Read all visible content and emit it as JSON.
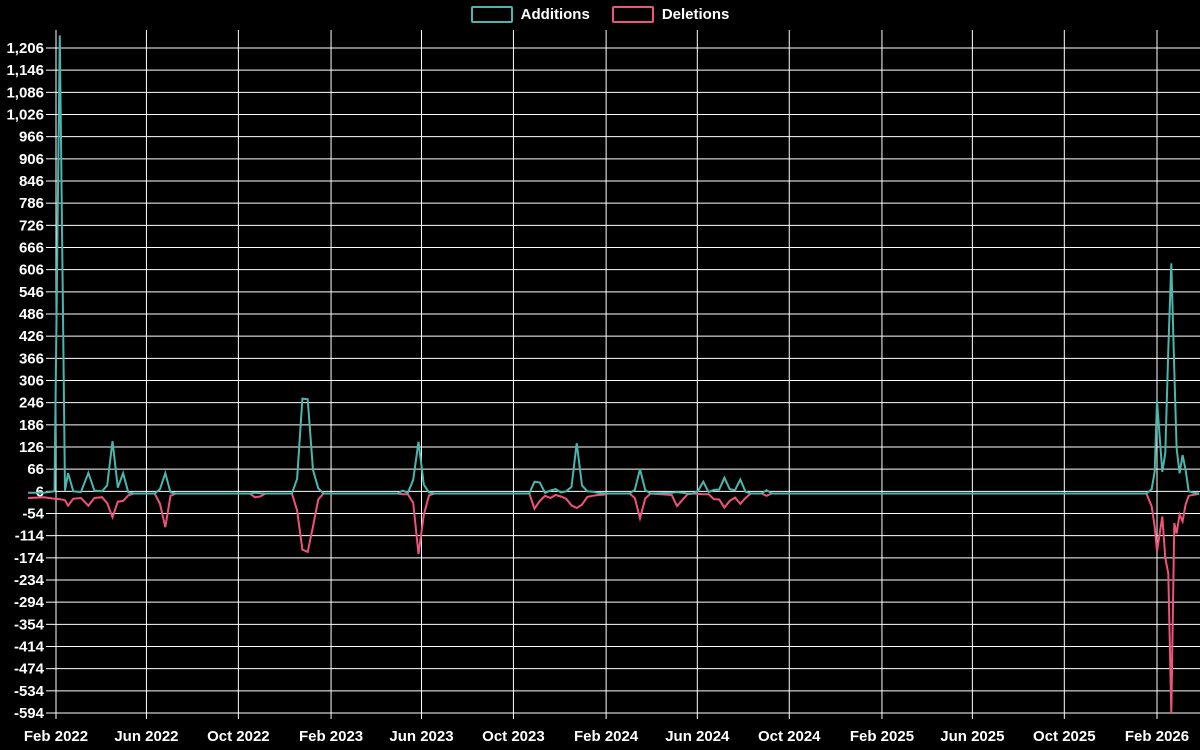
{
  "colors": {
    "background": "#000000",
    "grid": "#ffffff",
    "text": "#ffffff"
  },
  "legend": {
    "additions_label": "Additions",
    "deletions_label": "Deletions"
  },
  "chart_data": {
    "type": "line",
    "title": "",
    "xlabel": "",
    "ylabel": "",
    "legend_position": "top-center",
    "grid": true,
    "series_meta": [
      {
        "name": "Additions",
        "color": "#4ab6ad"
      },
      {
        "name": "Deletions",
        "color": "#f0537a"
      }
    ],
    "y_axis": {
      "min": -594,
      "max": 1240,
      "tick_step": 60,
      "tick_values": [
        1206,
        1146,
        1086,
        1026,
        966,
        906,
        846,
        786,
        726,
        666,
        606,
        546,
        486,
        426,
        366,
        306,
        246,
        186,
        126,
        66,
        6,
        -54,
        -114,
        -174,
        -234,
        -294,
        -354,
        -414,
        -474,
        -534,
        -594
      ],
      "tick_labels": [
        "1,206",
        "1,146",
        "1,086",
        "1,026",
        "966",
        "906",
        "846",
        "786",
        "726",
        "666",
        "606",
        "546",
        "486",
        "426",
        "366",
        "306",
        "246",
        "186",
        "126",
        "66",
        "6",
        "-54",
        "-114",
        "-174",
        "-234",
        "-294",
        "-354",
        "-414",
        "-474",
        "-534",
        "-594"
      ]
    },
    "x_axis": {
      "anchor_date": "2022-02-01",
      "ticks": [
        {
          "label": "Feb 2022",
          "date": "2022-02-01"
        },
        {
          "label": "Jun 2022",
          "date": "2022-06-01"
        },
        {
          "label": "Oct 2022",
          "date": "2022-10-01"
        },
        {
          "label": "Feb 2023",
          "date": "2023-02-01"
        },
        {
          "label": "Jun 2023",
          "date": "2023-06-01"
        },
        {
          "label": "Oct 2023",
          "date": "2023-10-01"
        },
        {
          "label": "Feb 2024",
          "date": "2024-02-01"
        },
        {
          "label": "Jun 2024",
          "date": "2024-06-01"
        },
        {
          "label": "Oct 2024",
          "date": "2024-10-01"
        },
        {
          "label": "Feb 2025",
          "date": "2025-02-01"
        },
        {
          "label": "Jun 2025",
          "date": "2025-06-01"
        },
        {
          "label": "Oct 2025",
          "date": "2025-10-01"
        },
        {
          "label": "Feb 2026",
          "date": "2026-02-01"
        }
      ]
    },
    "rows_format": [
      "week_date",
      "additions",
      "deletions"
    ],
    "rows": [
      [
        "2021-12-26",
        2,
        -12
      ],
      [
        "2022-01-16",
        2,
        -10
      ],
      [
        "2022-01-30",
        6,
        -14
      ],
      [
        "2022-02-06",
        1240,
        -15
      ],
      [
        "2022-02-13",
        8,
        -18
      ],
      [
        "2022-02-17",
        55,
        -33
      ],
      [
        "2022-02-24",
        6,
        -14
      ],
      [
        "2022-03-06",
        4,
        -12
      ],
      [
        "2022-03-16",
        56,
        -33
      ],
      [
        "2022-03-24",
        8,
        -12
      ],
      [
        "2022-04-03",
        6,
        -10
      ],
      [
        "2022-04-10",
        22,
        -26
      ],
      [
        "2022-04-17",
        142,
        -64
      ],
      [
        "2022-04-24",
        16,
        -22
      ],
      [
        "2022-05-01",
        55,
        -20
      ],
      [
        "2022-05-08",
        3,
        -5
      ],
      [
        "2022-05-15",
        0,
        0
      ],
      [
        "2022-06-12",
        0,
        0
      ],
      [
        "2022-06-19",
        12,
        -28
      ],
      [
        "2022-06-26",
        55,
        -91
      ],
      [
        "2022-07-03",
        3,
        -6
      ],
      [
        "2022-07-10",
        0,
        0
      ],
      [
        "2022-10-16",
        0,
        0
      ],
      [
        "2022-10-23",
        2,
        -10
      ],
      [
        "2022-10-30",
        1,
        -8
      ],
      [
        "2022-11-06",
        0,
        0
      ],
      [
        "2022-12-11",
        0,
        0
      ],
      [
        "2022-12-18",
        40,
        -46
      ],
      [
        "2022-12-25",
        257,
        -152
      ],
      [
        "2023-01-01",
        255,
        -158
      ],
      [
        "2023-01-08",
        64,
        -89
      ],
      [
        "2023-01-15",
        14,
        -16
      ],
      [
        "2023-01-22",
        0,
        0
      ],
      [
        "2023-04-30",
        0,
        0
      ],
      [
        "2023-05-07",
        8,
        -2
      ],
      [
        "2023-05-14",
        2,
        -2
      ],
      [
        "2023-05-21",
        37,
        -25
      ],
      [
        "2023-05-28",
        140,
        -164
      ],
      [
        "2023-06-04",
        24,
        -58
      ],
      [
        "2023-06-11",
        3,
        -5
      ],
      [
        "2023-06-18",
        0,
        0
      ],
      [
        "2023-10-22",
        0,
        0
      ],
      [
        "2023-10-29",
        32,
        -41
      ],
      [
        "2023-11-05",
        30,
        -20
      ],
      [
        "2023-11-12",
        2,
        -6
      ],
      [
        "2023-11-19",
        8,
        -12
      ],
      [
        "2023-11-26",
        12,
        -4
      ],
      [
        "2023-12-03",
        3,
        -8
      ],
      [
        "2023-12-10",
        6,
        -14
      ],
      [
        "2023-12-17",
        18,
        -32
      ],
      [
        "2023-12-24",
        136,
        -39
      ],
      [
        "2023-12-31",
        22,
        -30
      ],
      [
        "2024-01-07",
        6,
        -9
      ],
      [
        "2024-01-14",
        5,
        -6
      ],
      [
        "2024-01-21",
        2,
        -4
      ],
      [
        "2024-01-28",
        1,
        -3
      ],
      [
        "2024-02-04",
        0,
        0
      ],
      [
        "2024-03-03",
        0,
        0
      ],
      [
        "2024-03-10",
        10,
        -12
      ],
      [
        "2024-03-17",
        66,
        -67
      ],
      [
        "2024-03-24",
        9,
        -13
      ],
      [
        "2024-03-31",
        0,
        0
      ],
      [
        "2024-04-28",
        2,
        -4
      ],
      [
        "2024-05-05",
        4,
        -34
      ],
      [
        "2024-05-12",
        2,
        -18
      ],
      [
        "2024-05-19",
        0,
        -2
      ],
      [
        "2024-05-26",
        0,
        0
      ],
      [
        "2024-06-02",
        8,
        -1
      ],
      [
        "2024-06-09",
        32,
        -2
      ],
      [
        "2024-06-16",
        4,
        -2
      ],
      [
        "2024-06-23",
        10,
        -15
      ],
      [
        "2024-06-30",
        11,
        -16
      ],
      [
        "2024-07-07",
        43,
        -38
      ],
      [
        "2024-07-14",
        12,
        -20
      ],
      [
        "2024-07-21",
        9,
        -11
      ],
      [
        "2024-07-28",
        38,
        -28
      ],
      [
        "2024-08-04",
        5,
        -12
      ],
      [
        "2024-08-11",
        0,
        0
      ],
      [
        "2024-08-25",
        0,
        0
      ],
      [
        "2024-09-01",
        9,
        -6
      ],
      [
        "2024-09-08",
        0,
        0
      ],
      [
        "2025-06-01",
        0,
        0
      ],
      [
        "2026-01-18",
        0,
        0
      ],
      [
        "2026-01-25",
        12,
        -35
      ],
      [
        "2026-01-29",
        60,
        -90
      ],
      [
        "2026-02-01",
        251,
        -157
      ],
      [
        "2026-02-08",
        59,
        -62
      ],
      [
        "2026-02-12",
        110,
        -175
      ],
      [
        "2026-02-16",
        390,
        -216
      ],
      [
        "2026-02-20",
        623,
        -594
      ],
      [
        "2026-02-24",
        334,
        -80
      ],
      [
        "2026-02-27",
        123,
        -108
      ],
      [
        "2026-03-03",
        55,
        -57
      ],
      [
        "2026-03-07",
        104,
        -75
      ],
      [
        "2026-03-11",
        64,
        -30
      ],
      [
        "2026-03-15",
        6,
        -6
      ],
      [
        "2026-03-22",
        2,
        -3
      ],
      [
        "2026-03-29",
        0,
        -1
      ]
    ]
  }
}
